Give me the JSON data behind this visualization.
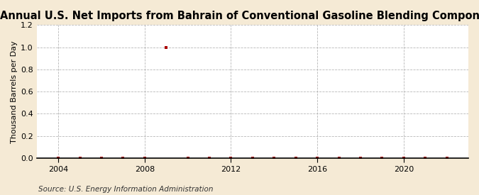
{
  "title": "Annual U.S. Net Imports from Bahrain of Conventional Gasoline Blending Components",
  "ylabel": "Thousand Barrels per Day",
  "source_text": "Source: U.S. Energy Information Administration",
  "xlim": [
    2003,
    2023
  ],
  "ylim": [
    0.0,
    1.2
  ],
  "yticks": [
    0.0,
    0.2,
    0.4,
    0.6,
    0.8,
    1.0,
    1.2
  ],
  "xticks": [
    2004,
    2008,
    2012,
    2016,
    2020
  ],
  "background_color": "#f5ead5",
  "plot_bg_color": "#ffffff",
  "grid_color": "#999999",
  "data_years": [
    2004,
    2005,
    2006,
    2007,
    2008,
    2009,
    2010,
    2011,
    2012,
    2013,
    2014,
    2015,
    2016,
    2017,
    2018,
    2019,
    2020,
    2021,
    2022
  ],
  "data_values": [
    0.0,
    0.0,
    0.0,
    0.0,
    0.0,
    1.0,
    0.0,
    0.0,
    0.0,
    0.0,
    0.0,
    0.0,
    0.0,
    0.0,
    0.0,
    0.0,
    0.0,
    0.0,
    0.0
  ],
  "marker_color": "#aa0000",
  "marker_size": 3.5,
  "title_fontsize": 10.5,
  "label_fontsize": 8,
  "tick_fontsize": 8,
  "source_fontsize": 7.5
}
